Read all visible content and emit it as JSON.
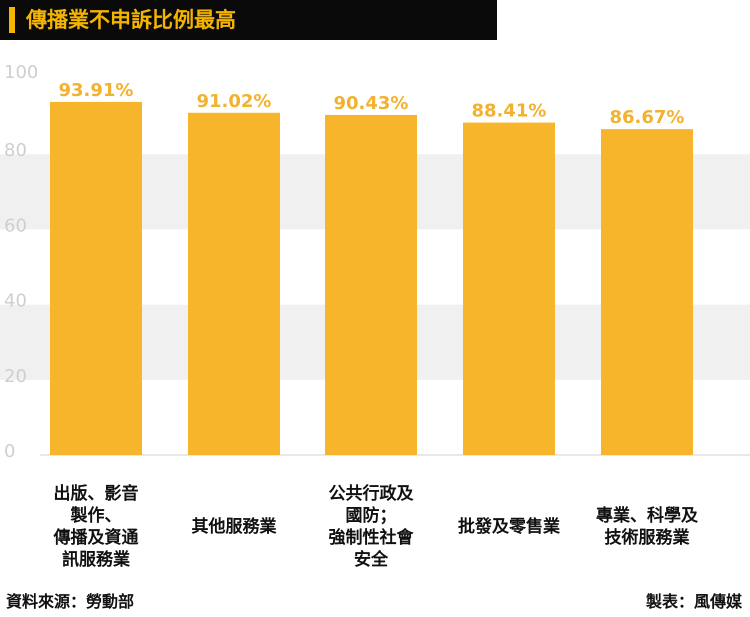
{
  "title": "傳播業不申訴比例最高",
  "source": "資料來源：勞動部",
  "credit": "製表：風傳媒",
  "colors": {
    "bar": "#f7b52c",
    "value_label": "#f2b230",
    "band": "#f0f0f0",
    "tick": "#cfcfcf",
    "title_bg": "#0a0a0a",
    "title_fg": "#f5b400"
  },
  "chart_data": {
    "type": "bar",
    "title": "傳播業不申訴比例最高",
    "xlabel": "",
    "ylabel": "",
    "ylim": [
      0,
      100
    ],
    "yticks": [
      0,
      20,
      40,
      60,
      80,
      100
    ],
    "categories": [
      [
        "出版、影音",
        "製作、",
        "傳播及資通",
        "訊服務業"
      ],
      [
        "其他服務業"
      ],
      [
        "公共行政及",
        "國防；",
        "強制性社會",
        "安全"
      ],
      [
        "批發及零售業"
      ],
      [
        "專業、科學及",
        "技術服務業"
      ]
    ],
    "values": [
      93.91,
      91.02,
      90.43,
      88.41,
      86.67
    ],
    "value_labels": [
      "93.91%",
      "91.02%",
      "90.43%",
      "88.41%",
      "86.67%"
    ],
    "grid": "alternating horizontal bands",
    "legend": "none"
  }
}
